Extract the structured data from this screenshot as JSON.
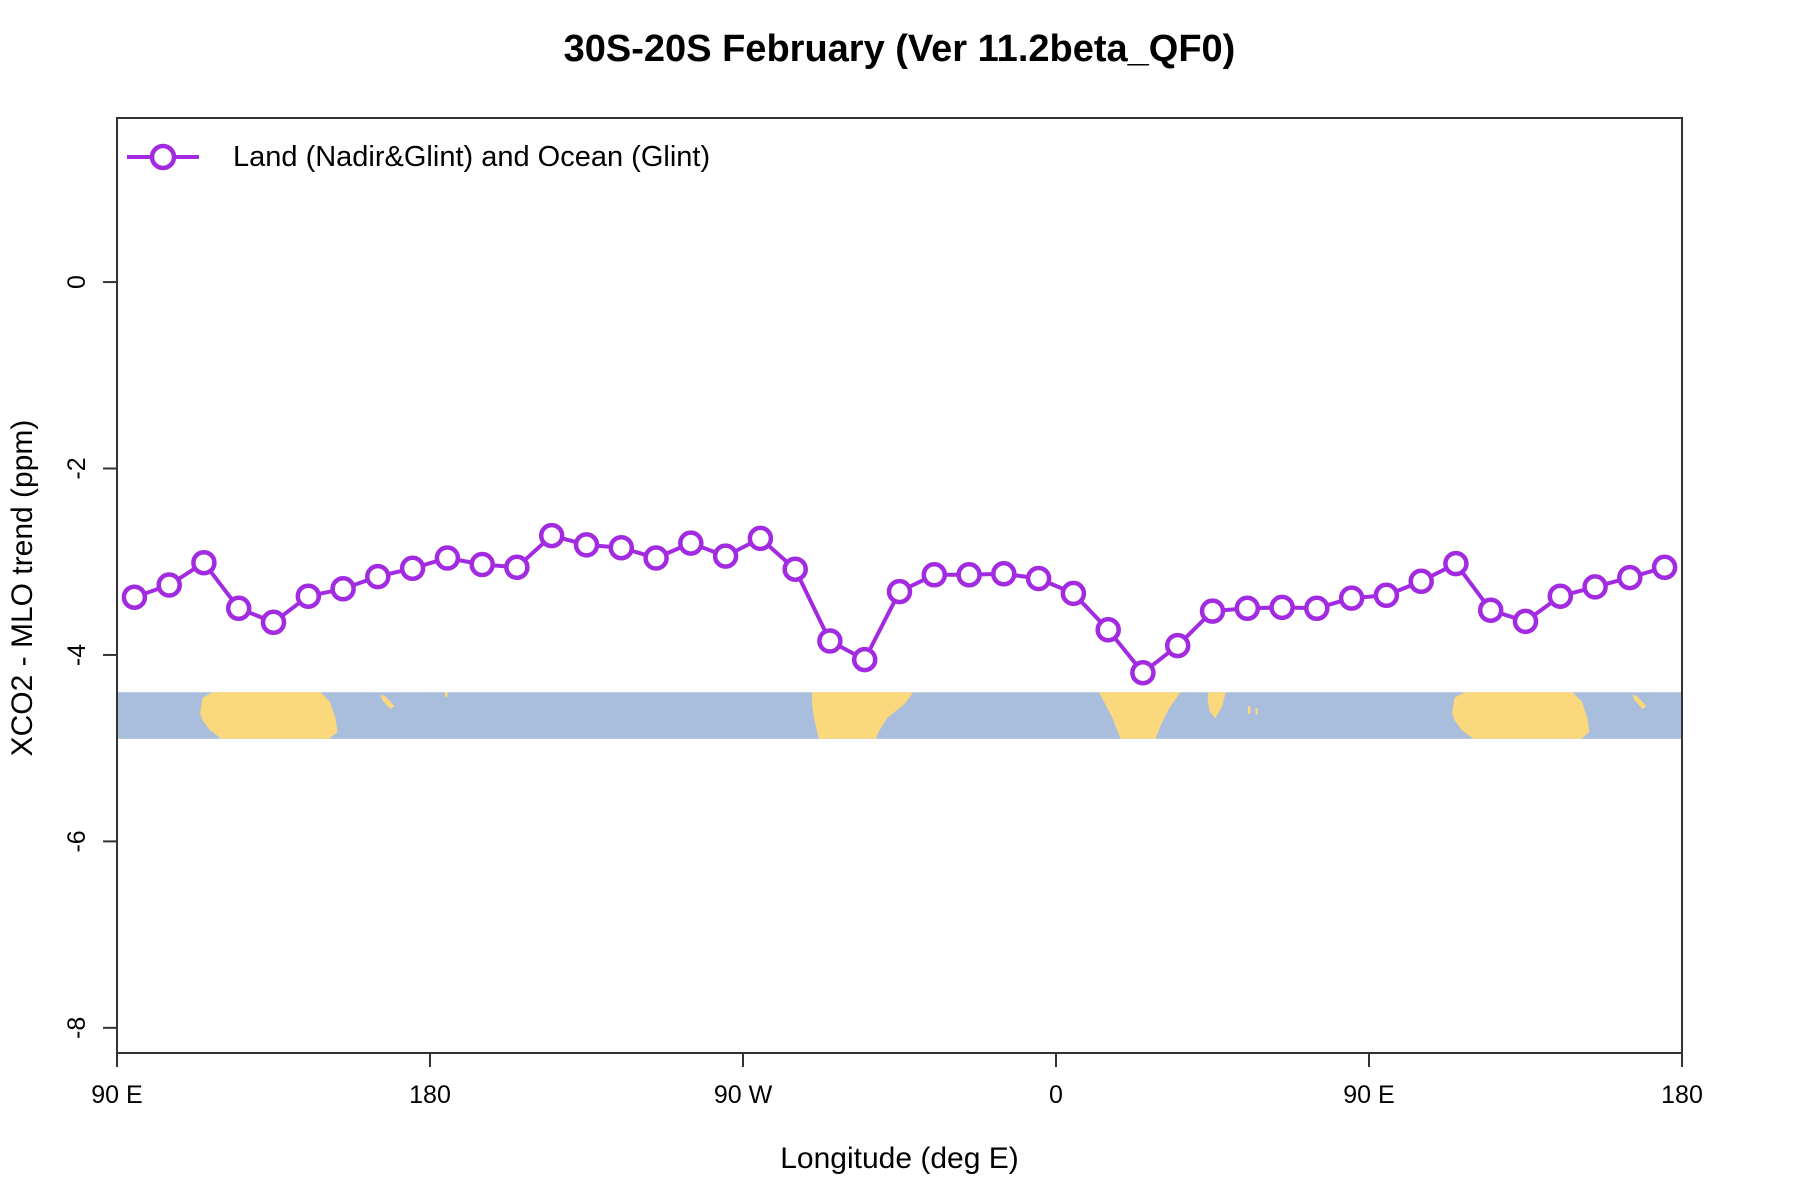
{
  "chart_data": {
    "type": "line",
    "title": "30S-20S February (Ver 11.2beta_QF0)",
    "xlabel": "Longitude (deg E)",
    "ylabel": "XCO2 - MLO trend (ppm)",
    "legend": {
      "position": "top-left",
      "entries": [
        {
          "label": "Land (Nadir&Glint) and Ocean (Glint)",
          "marker": "open-circle-with-line",
          "color": "#A22AE0"
        }
      ]
    },
    "grid": "off",
    "xlim": [
      90,
      540
    ],
    "ylim": [
      -8.27,
      1.76
    ],
    "xticks": [
      {
        "lon": 90,
        "label": "90 E"
      },
      {
        "lon": 180,
        "label": "180"
      },
      {
        "lon": 270,
        "label": "90 W"
      },
      {
        "lon": 360,
        "label": "0"
      },
      {
        "lon": 450,
        "label": "90 E"
      },
      {
        "lon": 540,
        "label": "180"
      }
    ],
    "yticks": [
      {
        "value": 0,
        "label": "0"
      },
      {
        "value": -2,
        "label": "-2"
      },
      {
        "value": -4,
        "label": "-4"
      },
      {
        "value": -6,
        "label": "-6"
      },
      {
        "value": -8,
        "label": "-8"
      }
    ],
    "x": [
      95,
      105,
      115,
      125,
      135,
      145,
      155,
      165,
      175,
      185,
      195,
      205,
      215,
      225,
      235,
      245,
      255,
      265,
      275,
      285,
      295,
      305,
      315,
      325,
      335,
      345,
      355,
      365,
      375,
      385,
      395,
      405,
      415,
      425,
      435,
      445,
      455,
      465,
      475,
      485,
      495,
      505,
      515,
      525,
      535
    ],
    "series": [
      {
        "name": "Land (Nadir&Glint) and Ocean (Glint)",
        "values": [
          -3.38,
          -3.25,
          -3.01,
          -3.5,
          -3.65,
          -3.37,
          -3.29,
          -3.16,
          -3.07,
          -2.96,
          -3.03,
          -3.06,
          -2.72,
          -2.82,
          -2.85,
          -2.96,
          -2.8,
          -2.94,
          -2.75,
          -3.08,
          -3.85,
          -4.05,
          -3.32,
          -3.14,
          -3.14,
          -3.13,
          -3.18,
          -3.34,
          -3.73,
          -4.19,
          -3.9,
          -3.53,
          -3.5,
          -3.49,
          -3.5,
          -3.39,
          -3.36,
          -3.21,
          -3.02,
          -3.52,
          -3.64,
          -3.37,
          -3.27,
          -3.17,
          -3.06
        ]
      }
    ],
    "line_color": "#A22AE0",
    "axis_color": "#333333",
    "map_band": {
      "description": "world coastline strip of the 30S-20S latitude band",
      "top_value": -4.4,
      "bottom_value": -4.9,
      "ocean_color": "#A9BEDD",
      "land_color": "#FCD87D",
      "land_polygons": [
        {
          "name": "australia",
          "pts": [
            [
              113.9,
              0.45
            ],
            [
              114.6,
              0.12
            ],
            [
              117.5,
              0.0
            ],
            [
              148.5,
              0.0
            ],
            [
              151.2,
              0.2
            ],
            [
              152.8,
              0.55
            ],
            [
              153.4,
              0.85
            ],
            [
              151.0,
              1.0
            ],
            [
              120.0,
              1.0
            ],
            [
              116.5,
              0.8
            ],
            [
              114.6,
              0.6
            ]
          ]
        },
        {
          "name": "new-caledonia",
          "pts": [
            [
              165.8,
              0.05
            ],
            [
              167.0,
              0.08
            ],
            [
              169.8,
              0.3
            ],
            [
              168.6,
              0.36
            ],
            [
              166.2,
              0.16
            ]
          ]
        },
        {
          "name": "fiji",
          "pts": [
            [
              184.3,
              0.0
            ],
            [
              185.2,
              0.0
            ],
            [
              184.9,
              0.12
            ],
            [
              184.2,
              0.08
            ]
          ]
        },
        {
          "name": "south-america",
          "pts": [
            [
              289.8,
              0.0
            ],
            [
              319.0,
              0.0
            ],
            [
              316.5,
              0.25
            ],
            [
              311.5,
              0.55
            ],
            [
              309.0,
              0.85
            ],
            [
              308.2,
              1.0
            ],
            [
              291.8,
              1.0
            ],
            [
              290.4,
              0.55
            ],
            [
              289.8,
              0.2
            ]
          ]
        },
        {
          "name": "africa",
          "pts": [
            [
              372.3,
              0.0
            ],
            [
              395.8,
              0.0
            ],
            [
              392.5,
              0.35
            ],
            [
              390.2,
              0.7
            ],
            [
              388.6,
              1.0
            ],
            [
              378.6,
              1.0
            ],
            [
              376.2,
              0.55
            ],
            [
              373.8,
              0.2
            ]
          ]
        },
        {
          "name": "madagascar",
          "pts": [
            [
              403.8,
              0.0
            ],
            [
              408.8,
              0.0
            ],
            [
              407.8,
              0.3
            ],
            [
              405.8,
              0.56
            ],
            [
              404.2,
              0.42
            ],
            [
              403.6,
              0.15
            ]
          ]
        },
        {
          "name": "mauritius",
          "pts": [
            [
              415.2,
              0.3
            ],
            [
              415.9,
              0.3
            ],
            [
              415.9,
              0.46
            ],
            [
              415.2,
              0.46
            ]
          ]
        },
        {
          "name": "reunion",
          "pts": [
            [
              417.4,
              0.34
            ],
            [
              418.0,
              0.34
            ],
            [
              418.0,
              0.48
            ],
            [
              417.4,
              0.48
            ]
          ]
        },
        {
          "name": "australia-wrapped",
          "pts": [
            [
              473.9,
              0.45
            ],
            [
              474.6,
              0.12
            ],
            [
              477.5,
              0.0
            ],
            [
              508.5,
              0.0
            ],
            [
              511.2,
              0.2
            ],
            [
              512.8,
              0.55
            ],
            [
              513.4,
              0.85
            ],
            [
              511.0,
              1.0
            ],
            [
              480.0,
              1.0
            ],
            [
              476.5,
              0.8
            ],
            [
              474.6,
              0.6
            ]
          ]
        },
        {
          "name": "new-caledonia-wrapped",
          "pts": [
            [
              525.8,
              0.05
            ],
            [
              527.0,
              0.08
            ],
            [
              529.8,
              0.3
            ],
            [
              528.6,
              0.36
            ],
            [
              526.2,
              0.16
            ]
          ]
        }
      ]
    }
  }
}
